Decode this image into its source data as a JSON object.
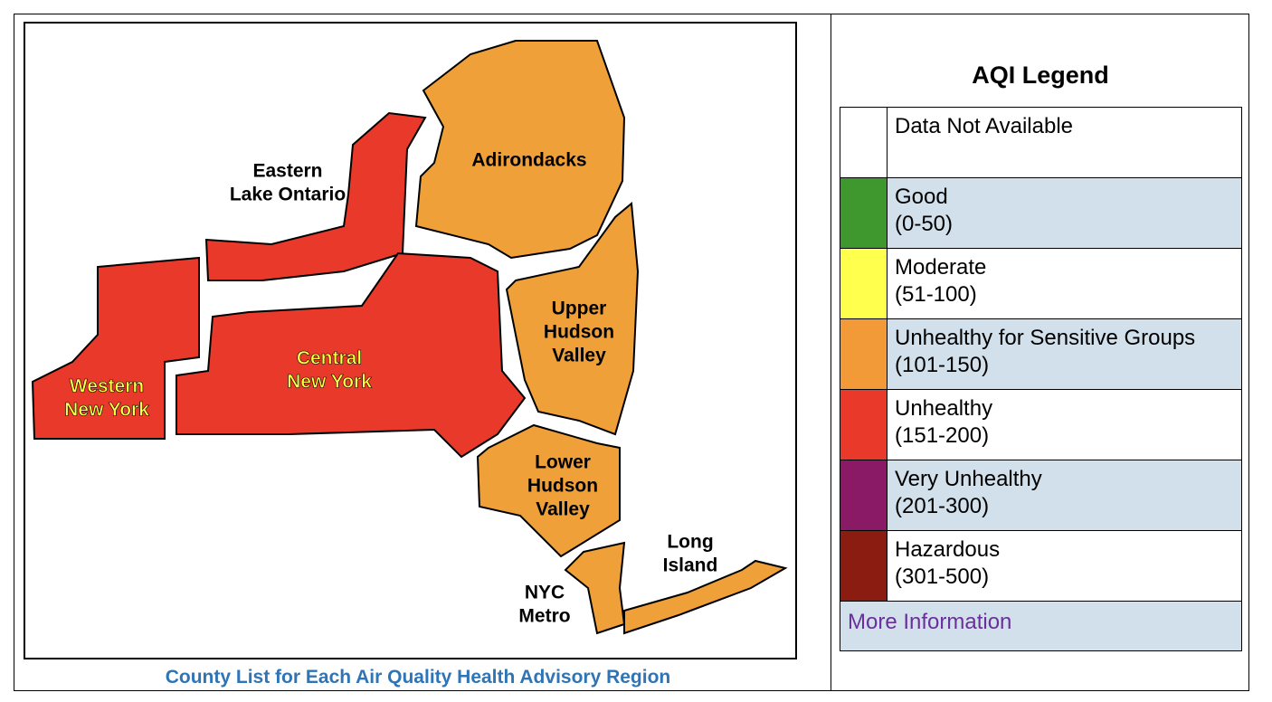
{
  "map": {
    "regions": [
      {
        "lines": [
          "Western",
          "New York"
        ],
        "color": "#e8392a",
        "text_color": "#ffff44"
      },
      {
        "lines": [
          "Eastern",
          "Lake Ontario"
        ],
        "color": "#e8392a",
        "text_color": "#000000"
      },
      {
        "lines": [
          "Central",
          "New York"
        ],
        "color": "#e8392a",
        "text_color": "#ffff44"
      },
      {
        "lines": [
          "Adirondacks"
        ],
        "color": "#f0a038",
        "text_color": "#000000"
      },
      {
        "lines": [
          "Upper",
          "Hudson",
          "Valley"
        ],
        "color": "#f0a038",
        "text_color": "#000000"
      },
      {
        "lines": [
          "Lower",
          "Hudson",
          "Valley"
        ],
        "color": "#f0a038",
        "text_color": "#000000"
      },
      {
        "lines": [
          "NYC",
          "Metro"
        ],
        "color": "#f0a038",
        "text_color": "#000000"
      },
      {
        "lines": [
          "Long",
          "Island"
        ],
        "color": "#f0a038",
        "text_color": "#000000"
      }
    ],
    "caption": "County List for Each Air Quality Health Advisory Region"
  },
  "legend": {
    "title": "AQI Legend",
    "items": [
      {
        "label": "Data Not Available",
        "color": "#ffffff"
      },
      {
        "label": "Good",
        "range": "(0-50)",
        "color": "#3f982e"
      },
      {
        "label": "Moderate",
        "range": "(51-100)",
        "color": "#ffff4d"
      },
      {
        "label": "Unhealthy for Sensitive Groups",
        "range": "(101-150)",
        "color": "#f29a38"
      },
      {
        "label": "Unhealthy",
        "range": "(151-200)",
        "color": "#e8392a"
      },
      {
        "label": "Very Unhealthy",
        "range": "(201-300)",
        "color": "#8a1a66"
      },
      {
        "label": "Hazardous",
        "range": "(301-500)",
        "color": "#8a1c12"
      }
    ],
    "link": "More Information"
  }
}
